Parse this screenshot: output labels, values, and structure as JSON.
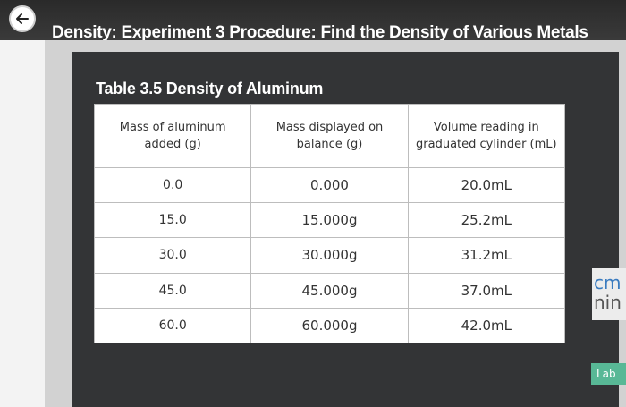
{
  "header": {
    "title": "Density: Experiment 3 Procedure: Find the Density of Various Metals",
    "back_icon": "arrow-left-icon"
  },
  "table": {
    "title": "Table 3.5 Density of Aluminum",
    "headers": [
      "Mass of aluminum added (g)",
      "Mass displayed on balance (g)",
      "Volume reading in graduated cylinder (mL)"
    ],
    "rows": [
      [
        "0.0",
        "0.000",
        "20.0mL"
      ],
      [
        "15.0",
        "15.000g",
        "25.2mL"
      ],
      [
        "30.0",
        "30.000g",
        "31.2mL"
      ],
      [
        "45.0",
        "45.000g",
        "37.0mL"
      ],
      [
        "60.0",
        "60.000g",
        "42.0mL"
      ]
    ]
  },
  "right_edge": {
    "partial_text_1": "cm",
    "partial_text_2": "nin"
  },
  "lab_tab": {
    "label": "Lab"
  },
  "colors": {
    "topbar": "#2a2a2a",
    "card": "#333436",
    "lab_tab": "#58b896",
    "link": "#3a7bbf"
  }
}
